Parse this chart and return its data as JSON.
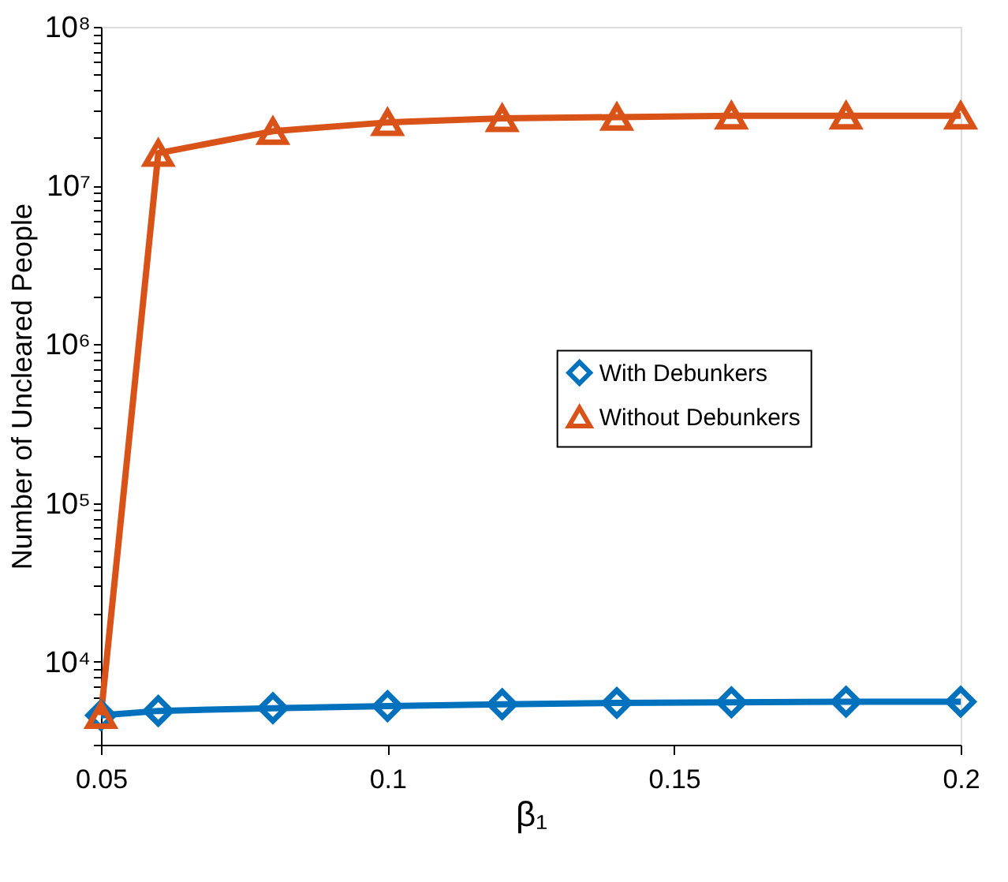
{
  "chart_data": {
    "type": "line",
    "xlabel": "β₁",
    "ylabel": "Number of Uncleared People",
    "x": [
      0.05,
      0.06,
      0.08,
      0.1,
      0.12,
      0.14,
      0.16,
      0.18,
      0.2
    ],
    "series": [
      {
        "name": "With Debunkers",
        "color": "#0072bd",
        "marker": "diamond",
        "values": [
          4600,
          4900,
          5100,
          5250,
          5400,
          5500,
          5550,
          5600,
          5600
        ]
      },
      {
        "name": "Without Debunkers",
        "color": "#d95319",
        "marker": "triangle",
        "values": [
          4600,
          16000000,
          22000000,
          25000000,
          26500000,
          27000000,
          27500000,
          27500000,
          27500000
        ]
      }
    ],
    "xlim": [
      0.05,
      0.2
    ],
    "xticks": [
      0.05,
      0.1,
      0.15,
      0.2
    ],
    "ylim": [
      3000,
      100000000
    ],
    "log": true,
    "yticks": [
      {
        "value": 3000,
        "label": null
      },
      {
        "value": 4000,
        "label": null
      },
      {
        "value": 5000,
        "label": null
      },
      {
        "value": 6000,
        "label": null
      },
      {
        "value": 7000,
        "label": null
      },
      {
        "value": 8000,
        "label": null
      },
      {
        "value": 9000,
        "label": null
      },
      {
        "value": 10000,
        "label": "10⁴"
      },
      {
        "value": 20000,
        "label": null
      },
      {
        "value": 30000,
        "label": null
      },
      {
        "value": 40000,
        "label": null
      },
      {
        "value": 50000,
        "label": null
      },
      {
        "value": 60000,
        "label": null
      },
      {
        "value": 70000,
        "label": null
      },
      {
        "value": 80000,
        "label": null
      },
      {
        "value": 90000,
        "label": null
      },
      {
        "value": 100000,
        "label": "10⁵"
      },
      {
        "value": 200000,
        "label": null
      },
      {
        "value": 300000,
        "label": null
      },
      {
        "value": 400000,
        "label": null
      },
      {
        "value": 500000,
        "label": null
      },
      {
        "value": 600000,
        "label": null
      },
      {
        "value": 700000,
        "label": null
      },
      {
        "value": 800000,
        "label": null
      },
      {
        "value": 900000,
        "label": null
      },
      {
        "value": 1000000,
        "label": "10⁶"
      },
      {
        "value": 2000000,
        "label": null
      },
      {
        "value": 3000000,
        "label": null
      },
      {
        "value": 4000000,
        "label": null
      },
      {
        "value": 5000000,
        "label": null
      },
      {
        "value": 6000000,
        "label": null
      },
      {
        "value": 7000000,
        "label": null
      },
      {
        "value": 8000000,
        "label": null
      },
      {
        "value": 9000000,
        "label": null
      },
      {
        "value": 10000000,
        "label": "10⁷"
      },
      {
        "value": 20000000,
        "label": null
      },
      {
        "value": 30000000,
        "label": null
      },
      {
        "value": 40000000,
        "label": null
      },
      {
        "value": 50000000,
        "label": null
      },
      {
        "value": 60000000,
        "label": null
      },
      {
        "value": 70000000,
        "label": null
      },
      {
        "value": 80000000,
        "label": null
      },
      {
        "value": 90000000,
        "label": null
      },
      {
        "value": 100000000,
        "label": "10⁸"
      }
    ],
    "grid": false,
    "legend": "right",
    "line_style": "solid"
  }
}
